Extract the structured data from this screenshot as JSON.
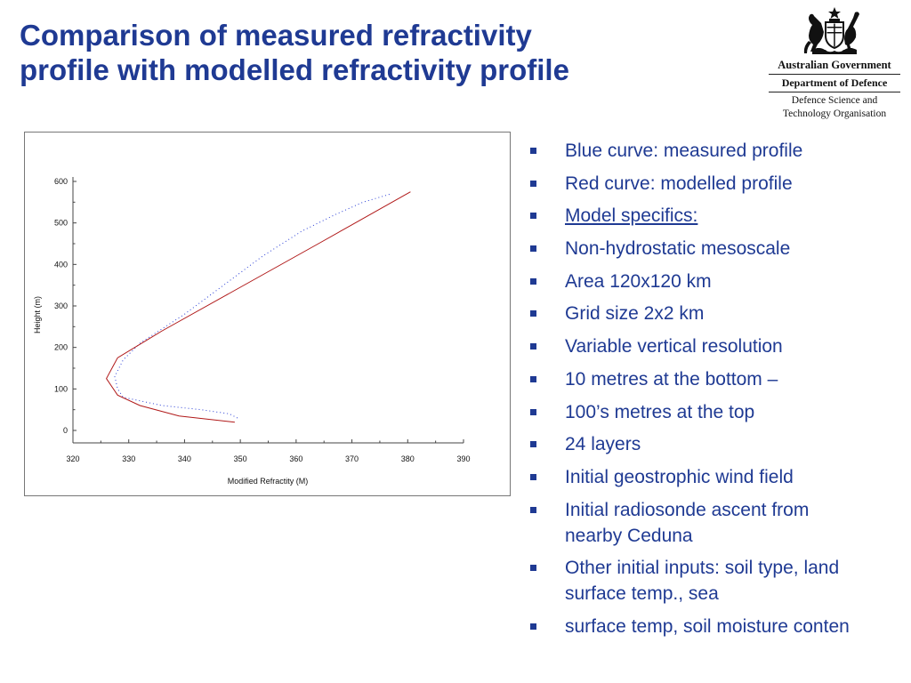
{
  "title": {
    "line1": "Comparison of measured refractivity",
    "line2": "profile with modelled refractivity profile"
  },
  "logo": {
    "icon": "coat-of-arms-icon",
    "line1": "Australian Government",
    "line2": "Department of Defence",
    "line3": "Defence Science and",
    "line4": "Technology Organisation"
  },
  "colors": {
    "title": "#1f3a93",
    "bullet_text": "#1f3a93",
    "measured_curve": "#2a3fd6",
    "modelled_curve": "#b01818"
  },
  "bullets": [
    {
      "text": "Blue curve: measured profile"
    },
    {
      "text": "Red curve: modelled profile"
    },
    {
      "text": "Model specifics:",
      "underline": true
    },
    {
      "text": "Non-hydrostatic mesoscale"
    },
    {
      "text": "Area 120x120 km"
    },
    {
      "text": "Grid size 2x2 km"
    },
    {
      "text": "Variable vertical resolution"
    },
    {
      "text": "10 metres at the bottom –"
    },
    {
      "text": "100’s metres at the top"
    },
    {
      "text": "24 layers"
    },
    {
      "text": "Initial geostrophic wind field"
    },
    {
      "text": "Initial radiosonde ascent from\nnearby Ceduna"
    },
    {
      "text": "Other initial inputs: soil type, land\nsurface temp., sea"
    },
    {
      "text": "surface temp, soil moisture conten"
    }
  ],
  "chart_data": {
    "type": "line",
    "title": "",
    "xlabel": "Modified Refractity (M)",
    "ylabel": "Height (m)",
    "xlim": [
      320,
      390
    ],
    "ylim": [
      0,
      600
    ],
    "x_ticks": [
      320,
      330,
      340,
      350,
      360,
      370,
      380,
      390
    ],
    "y_ticks": [
      0,
      100,
      200,
      300,
      400,
      500,
      600
    ],
    "grid": false,
    "legend": "none",
    "series": [
      {
        "style": "dotted",
        "color": "#2a3fd6",
        "x": [
          349.5,
          348,
          343,
          336,
          329,
          328,
          327.5,
          329,
          332,
          340,
          347,
          354,
          361,
          367,
          372,
          377
        ],
        "y": [
          30,
          40,
          50,
          60,
          80,
          100,
          130,
          170,
          210,
          280,
          350,
          420,
          480,
          520,
          550,
          570
        ]
      },
      {
        "style": "solid",
        "color": "#b01818",
        "x": [
          349,
          339,
          332,
          328,
          326,
          328,
          336,
          348,
          364,
          380.5
        ],
        "y": [
          20,
          35,
          60,
          85,
          125,
          175,
          240,
          330,
          450,
          575
        ]
      }
    ]
  }
}
